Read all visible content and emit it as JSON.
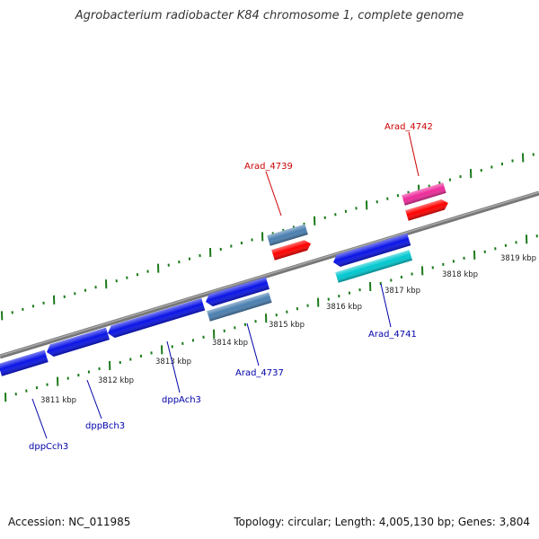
{
  "title": "Agrobacterium radiobacter K84 chromosome 1, complete genome",
  "footer": {
    "accession": "Accession: NC_011985",
    "summary": "Topology: circular; Length: 4,005,130 bp; Genes: 3,804"
  },
  "colors": {
    "backbone": "#808080",
    "tick": "#1a7a1a",
    "scale_label": "#222222",
    "label_plus": "#cc0000",
    "label_minus": "#0000aa",
    "gene_blue": "#0a14e6",
    "gene_steel": "#4a7fb0",
    "gene_red": "#ff0000",
    "gene_pink": "#ee2a9a",
    "gene_cyan": "#00c8d0"
  },
  "scale_labels": [
    "3811 kbp",
    "3812 kbp",
    "3813 kbp",
    "3814 kbp",
    "3815 kbp",
    "3816 kbp",
    "3817 kbp",
    "3818 kbp",
    "3819 kbp"
  ],
  "gene_labels": [
    "Arad_4742",
    "Arad_4739",
    "Arad_4741",
    "Arad_4737",
    "dppAch3",
    "dppBch3",
    "dppCch3"
  ]
}
